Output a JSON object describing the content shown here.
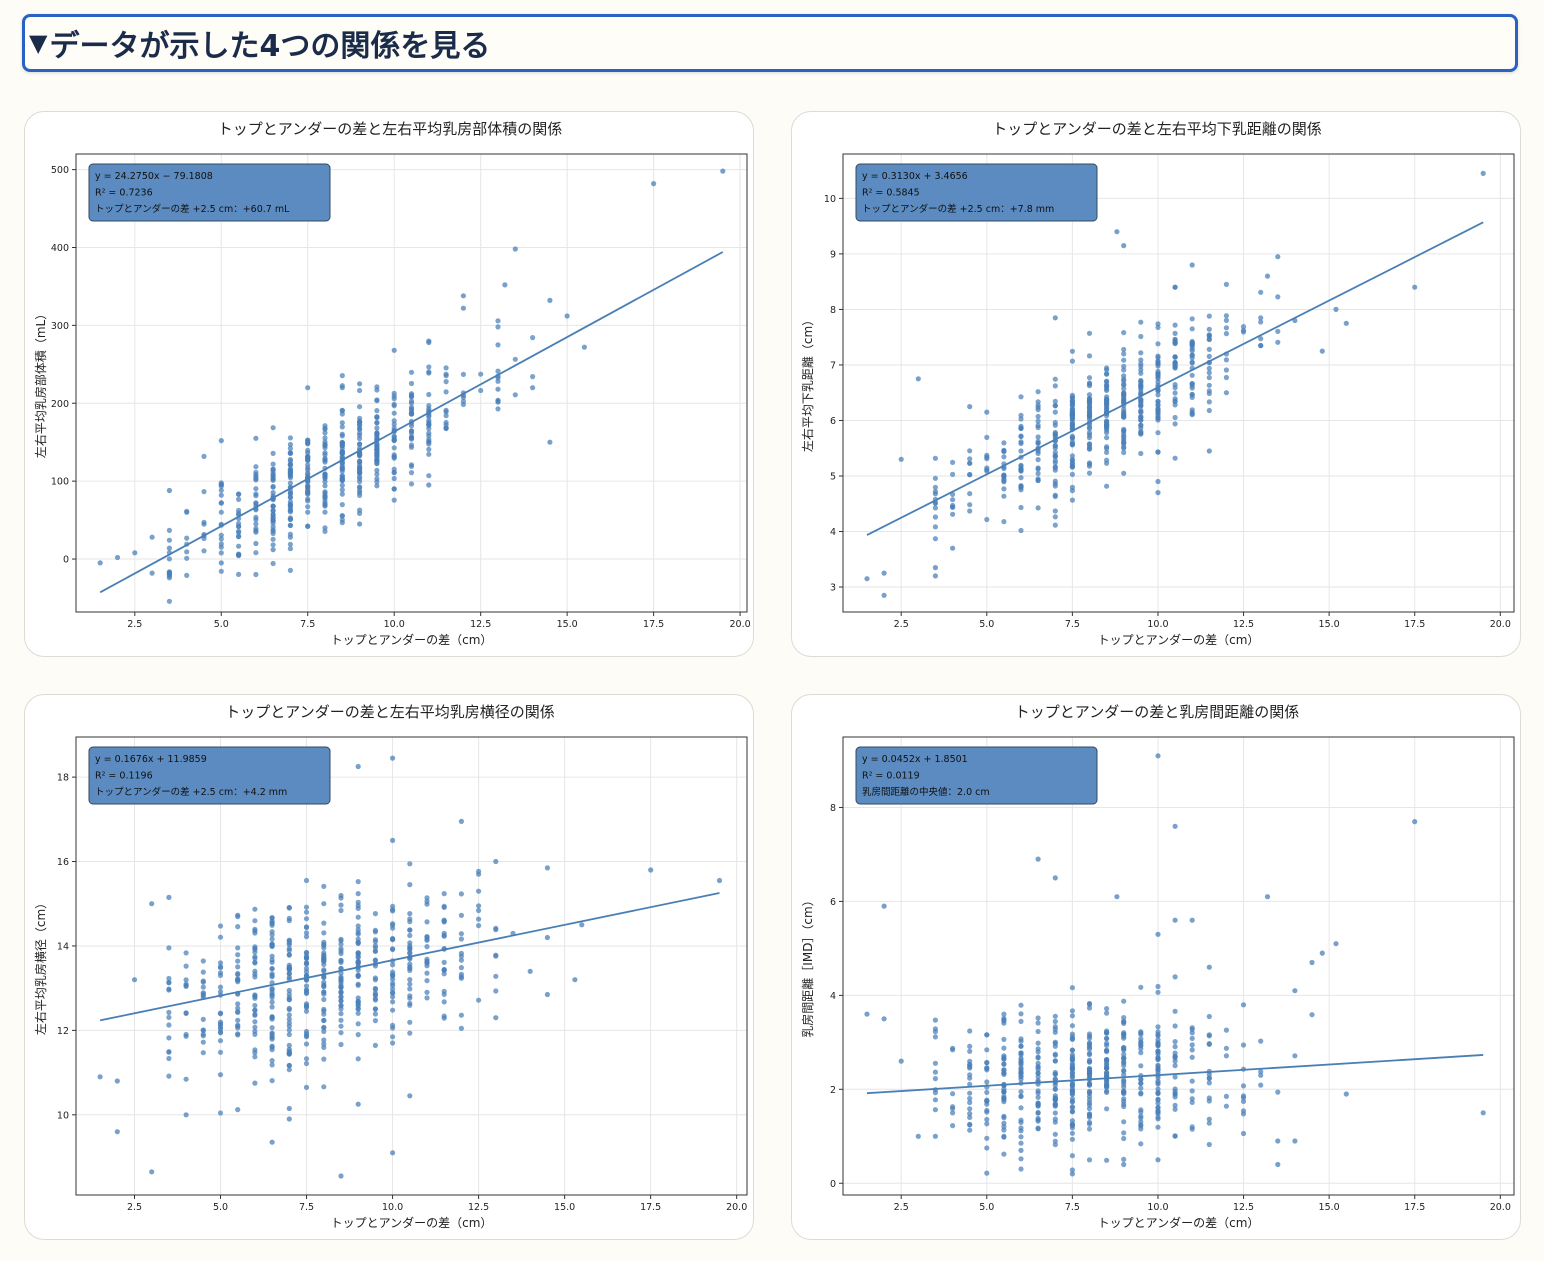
{
  "header": {
    "toggle_icon": "▼",
    "title": "データが示した4つの関係を見る"
  },
  "charts": [
    {
      "type": "scatter",
      "title": "トップとアンダーの差と左右平均乳房部体積の関係",
      "xlabel": "トップとアンダーの差（cm）",
      "ylabel": "左右平均乳房部体積（mL）",
      "xlim": [
        0.8,
        20.2
      ],
      "ylim": [
        -68,
        520
      ],
      "xticks": [
        2.5,
        5.0,
        7.5,
        10.0,
        12.5,
        15.0,
        17.5,
        20.0
      ],
      "yticks": [
        0,
        100,
        200,
        300,
        400,
        500
      ],
      "xtick_labels": [
        "2.5",
        "5.0",
        "7.5",
        "10.0",
        "12.5",
        "15.0",
        "17.5",
        "20.0"
      ],
      "yticks_labels": [
        "0",
        "100",
        "200",
        "300",
        "400",
        "500"
      ],
      "annotation": [
        "y = 24.2750x − 79.1808",
        "R² = 0.7236",
        "トップとアンダーの差 +2.5 cm：+60.7 mL"
      ],
      "fit": {
        "slope": 24.275,
        "intercept": -79.1808,
        "x0": 1.5,
        "x1": 19.5
      },
      "points": [
        [
          1.5,
          -5
        ],
        [
          2,
          2
        ],
        [
          2.5,
          8
        ],
        [
          3,
          -18
        ],
        [
          3,
          28
        ],
        [
          3.5,
          88
        ],
        [
          4,
          60
        ],
        [
          3.5,
          14
        ],
        [
          14.5,
          150
        ],
        [
          17.5,
          482
        ],
        [
          19.5,
          498
        ],
        [
          13.5,
          398
        ],
        [
          13.2,
          352
        ],
        [
          15,
          312
        ],
        [
          15.5,
          272
        ],
        [
          14.5,
          332
        ],
        [
          12,
          338
        ],
        [
          12,
          322
        ],
        [
          11,
          278
        ],
        [
          10,
          268
        ],
        [
          9,
          225
        ],
        [
          8.5,
          220
        ],
        [
          7.5,
          220
        ],
        [
          6,
          155
        ],
        [
          5,
          152
        ],
        [
          13,
          218
        ],
        [
          14,
          220
        ],
        [
          11,
          95
        ],
        [
          5,
          -5
        ],
        [
          6,
          20
        ],
        [
          6.5,
          12
        ],
        [
          7,
          28
        ],
        [
          8,
          40
        ],
        [
          9,
          45
        ],
        [
          10,
          90
        ],
        [
          11.5,
          168
        ]
      ],
      "cloud": {
        "n": 520,
        "seed": 11,
        "xmin": 3.5,
        "xmax": 14.5,
        "xcenter": 8.2,
        "xsd": 2.1,
        "noise": 35,
        "step": 0.5
      }
    },
    {
      "type": "scatter",
      "title": "トップとアンダーの差と左右平均下乳距離の関係",
      "xlabel": "トップとアンダーの差（cm）",
      "ylabel": "左右平均下乳距離（cm）",
      "xlim": [
        0.8,
        20.4
      ],
      "ylim": [
        2.55,
        10.8
      ],
      "xticks": [
        2.5,
        5.0,
        7.5,
        10.0,
        12.5,
        15.0,
        17.5,
        20.0
      ],
      "yticks": [
        3,
        4,
        5,
        6,
        7,
        8,
        9,
        10
      ],
      "xtick_labels": [
        "2.5",
        "5.0",
        "7.5",
        "10.0",
        "12.5",
        "15.0",
        "17.5",
        "20.0"
      ],
      "yticks_labels": [
        "3",
        "4",
        "5",
        "6",
        "7",
        "8",
        "9",
        "10"
      ],
      "annotation": [
        "y = 0.3130x + 3.4656",
        "R² = 0.5845",
        "トップとアンダーの差 +2.5 cm：+7.8 mm"
      ],
      "fit": {
        "slope": 0.313,
        "intercept": 3.4656,
        "x0": 1.5,
        "x1": 19.5
      },
      "points": [
        [
          1.5,
          3.15
        ],
        [
          2,
          3.25
        ],
        [
          2,
          2.85
        ],
        [
          2.5,
          5.3
        ],
        [
          3,
          6.75
        ],
        [
          3.5,
          3.2
        ],
        [
          3.5,
          3.35
        ],
        [
          4,
          3.7
        ],
        [
          19.5,
          10.45
        ],
        [
          17.5,
          8.4
        ],
        [
          15.5,
          7.75
        ],
        [
          15.2,
          8.0
        ],
        [
          14.8,
          7.25
        ],
        [
          13.5,
          8.95
        ],
        [
          13.2,
          8.6
        ],
        [
          8.8,
          9.4
        ],
        [
          9,
          9.15
        ],
        [
          7,
          7.85
        ],
        [
          11,
          8.8
        ],
        [
          10.5,
          8.4
        ],
        [
          10,
          4.9
        ],
        [
          10,
          4.7
        ],
        [
          11.5,
          5.45
        ],
        [
          4.5,
          6.25
        ],
        [
          5,
          6.15
        ],
        [
          14,
          7.8
        ]
      ],
      "cloud": {
        "n": 520,
        "seed": 23,
        "xmin": 3.5,
        "xmax": 14.5,
        "xcenter": 8.2,
        "xsd": 2.1,
        "noise": 0.52,
        "step": 0.5
      }
    },
    {
      "type": "scatter",
      "title": "トップとアンダーの差と左右平均乳房横径の関係",
      "xlabel": "トップとアンダーの差（cm）",
      "ylabel": "左右平均乳房横径（cm）",
      "xlim": [
        0.8,
        20.3
      ],
      "ylim": [
        8.1,
        18.95
      ],
      "xticks": [
        2.5,
        5.0,
        7.5,
        10.0,
        12.5,
        15.0,
        17.5,
        20.0
      ],
      "yticks": [
        10,
        12,
        14,
        16,
        18
      ],
      "xtick_labels": [
        "2.5",
        "5.0",
        "7.5",
        "10.0",
        "12.5",
        "15.0",
        "17.5",
        "20.0"
      ],
      "yticks_labels": [
        "10",
        "12",
        "14",
        "16",
        "18"
      ],
      "annotation": [
        "y = 0.1676x + 11.9859",
        "R² = 0.1196",
        "トップとアンダーの差 +2.5 cm：+4.2 mm"
      ],
      "fit": {
        "slope": 0.1676,
        "intercept": 11.9859,
        "x0": 1.5,
        "x1": 19.5
      },
      "points": [
        [
          1.5,
          10.9
        ],
        [
          2,
          10.8
        ],
        [
          2,
          9.6
        ],
        [
          3,
          8.65
        ],
        [
          4,
          10
        ],
        [
          2.5,
          13.2
        ],
        [
          3,
          15
        ],
        [
          3.5,
          15.15
        ],
        [
          17.5,
          15.8
        ],
        [
          19.5,
          15.55
        ],
        [
          15.5,
          14.5
        ],
        [
          15.3,
          13.2
        ],
        [
          14.5,
          12.85
        ],
        [
          14,
          13.4
        ],
        [
          13,
          12.3
        ],
        [
          12,
          16.95
        ],
        [
          10,
          18.45
        ],
        [
          9,
          18.25
        ],
        [
          10,
          16.5
        ],
        [
          8.5,
          8.55
        ],
        [
          10,
          9.1
        ],
        [
          7,
          10.15
        ],
        [
          7,
          9.9
        ],
        [
          6.5,
          9.35
        ],
        [
          10.5,
          10.45
        ],
        [
          9,
          10.25
        ],
        [
          7.5,
          10.65
        ],
        [
          6,
          10.75
        ],
        [
          5,
          10.95
        ],
        [
          14.5,
          15.85
        ],
        [
          13,
          16
        ],
        [
          12.5,
          15.7
        ],
        [
          14.5,
          14.2
        ]
      ],
      "cloud": {
        "n": 540,
        "seed": 37,
        "xmin": 3.5,
        "xmax": 14.5,
        "xcenter": 8.0,
        "xsd": 2.2,
        "noise": 0.95,
        "step": 0.5
      }
    },
    {
      "type": "scatter",
      "title": "トップとアンダーの差と乳房間距離の関係",
      "xlabel": "トップとアンダーの差（cm）",
      "ylabel": "乳房間距離［IMD］（cm）",
      "xlim": [
        0.8,
        20.4
      ],
      "ylim": [
        -0.25,
        9.5
      ],
      "xticks": [
        2.5,
        5.0,
        7.5,
        10.0,
        12.5,
        15.0,
        17.5,
        20.0
      ],
      "yticks": [
        0,
        2,
        4,
        6,
        8
      ],
      "xtick_labels": [
        "2.5",
        "5.0",
        "7.5",
        "10.0",
        "12.5",
        "15.0",
        "17.5",
        "20.0"
      ],
      "yticks_labels": [
        "0",
        "2",
        "4",
        "6",
        "8"
      ],
      "annotation": [
        "y = 0.0452x + 1.8501",
        "R² = 0.0119",
        "乳房間距離の中央値：2.0 cm"
      ],
      "fit": {
        "slope": 0.0452,
        "intercept": 1.8501,
        "x0": 1.5,
        "x1": 19.5
      },
      "points": [
        [
          1.5,
          3.6
        ],
        [
          2,
          3.5
        ],
        [
          2,
          5.9
        ],
        [
          2.5,
          2.6
        ],
        [
          3,
          1
        ],
        [
          3.5,
          1
        ],
        [
          19.5,
          1.5
        ],
        [
          17.5,
          7.7
        ],
        [
          15.5,
          1.9
        ],
        [
          15.2,
          5.1
        ],
        [
          14.8,
          4.9
        ],
        [
          14.5,
          4.7
        ],
        [
          14,
          4.1
        ],
        [
          13.2,
          6.1
        ],
        [
          13.5,
          0.4
        ],
        [
          10,
          9.1
        ],
        [
          10.5,
          7.6
        ],
        [
          11,
          5.6
        ],
        [
          10.5,
          5.6
        ],
        [
          10,
          5.3
        ],
        [
          8.8,
          6.1
        ],
        [
          6.5,
          6.9
        ],
        [
          7,
          6.5
        ],
        [
          7.5,
          0.2
        ],
        [
          9,
          0.4
        ],
        [
          10,
          0.5
        ],
        [
          6,
          0.7
        ],
        [
          13.5,
          0.9
        ],
        [
          12.5,
          3.8
        ],
        [
          11.5,
          4.6
        ],
        [
          14,
          0.9
        ]
      ],
      "cloud": {
        "n": 540,
        "seed": 51,
        "xmin": 3.5,
        "xmax": 14.5,
        "xcenter": 8.0,
        "xsd": 2.2,
        "noise": 0.75,
        "step": 0.5
      }
    }
  ],
  "style": {
    "point_color": "#4a80b8",
    "line_color": "#4a7fb5",
    "ann_fill": "#5b8bc0",
    "ann_stroke": "#33495e",
    "grid_color": "#e6e6e6"
  }
}
